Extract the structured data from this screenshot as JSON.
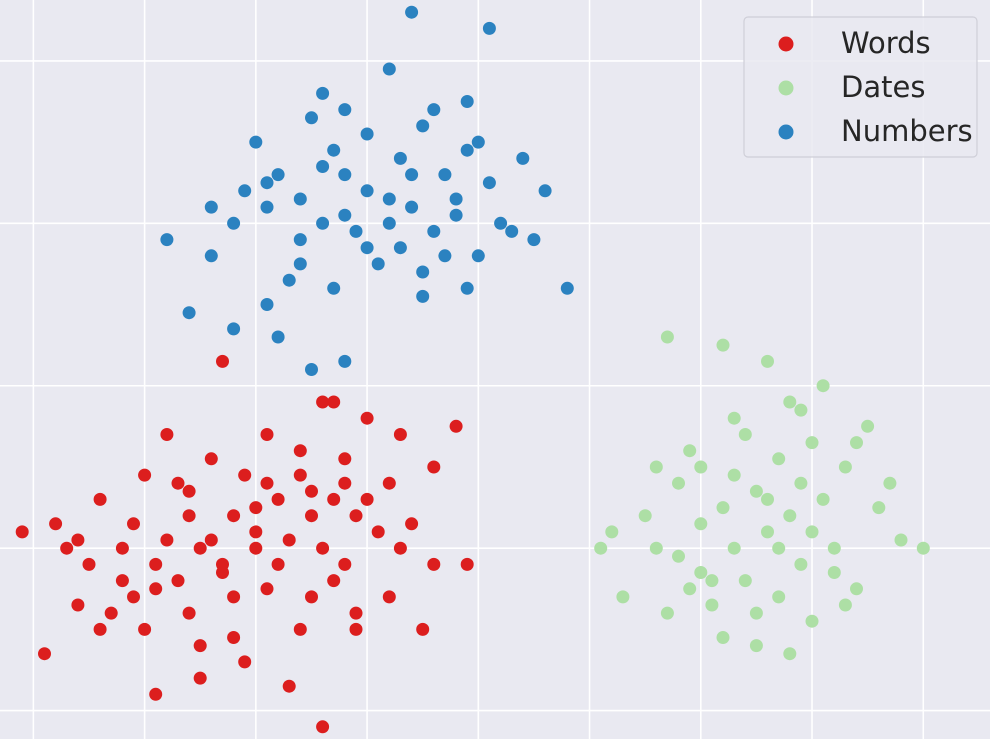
{
  "chart_data": {
    "type": "scatter",
    "title": "",
    "xlabel": "",
    "ylabel": "",
    "xlim": [
      -3.3,
      5.6
    ],
    "ylim": [
      -4.35,
      4.75
    ],
    "grid": true,
    "legend_position": "top-right",
    "background_color": "#e9e9f1",
    "grid_color": "#ffffff",
    "series": [
      {
        "name": "Words",
        "color": "#dc1e1e",
        "points": [
          [
            -2.1,
            -1.7
          ],
          [
            -1.6,
            -1.6
          ],
          [
            -1.0,
            -1.5
          ],
          [
            -0.5,
            -1.3
          ],
          [
            -2.6,
            -1.9
          ],
          [
            -1.3,
            -2.2
          ],
          [
            -0.9,
            -2.5
          ],
          [
            -0.3,
            -2.4
          ],
          [
            -2.9,
            -3.3
          ],
          [
            -1.5,
            -3.2
          ],
          [
            -0.6,
            -3.0
          ],
          [
            -2.3,
            -2.8
          ],
          [
            -1.9,
            -2.5
          ],
          [
            -0.2,
            -1.2
          ],
          [
            0.1,
            -1.8
          ],
          [
            0.4,
            -1.7
          ],
          [
            0.6,
            -2.2
          ],
          [
            0.2,
            -2.6
          ],
          [
            -0.1,
            -3.0
          ],
          [
            -0.7,
            -3.7
          ],
          [
            -1.2,
            -3.1
          ],
          [
            -2.5,
            -2.2
          ],
          [
            -3.1,
            -1.8
          ],
          [
            -2.8,
            -1.7
          ],
          [
            -1.8,
            -0.6
          ],
          [
            -1.4,
            -0.9
          ],
          [
            -0.9,
            -0.6
          ],
          [
            -0.3,
            -0.2
          ],
          [
            0.0,
            -0.4
          ],
          [
            0.3,
            -0.6
          ],
          [
            -0.6,
            -0.8
          ],
          [
            -1.1,
            -1.1
          ],
          [
            -1.7,
            -1.2
          ],
          [
            -2.4,
            -1.4
          ],
          [
            -2.2,
            -2.0
          ],
          [
            -1.8,
            -1.9
          ],
          [
            -1.4,
            -1.9
          ],
          [
            -1.0,
            -1.8
          ],
          [
            -0.7,
            -1.9
          ],
          [
            -0.4,
            -2.0
          ],
          [
            -0.1,
            -1.6
          ],
          [
            0.2,
            -1.2
          ],
          [
            -0.2,
            -0.9
          ],
          [
            -0.5,
            -1.6
          ],
          [
            -0.8,
            -1.4
          ],
          [
            -1.2,
            -1.6
          ],
          [
            -1.5,
            -2.0
          ],
          [
            -1.9,
            -2.2
          ],
          [
            -2.2,
            -2.4
          ],
          [
            -2.6,
            -2.7
          ],
          [
            -2.0,
            -3.0
          ],
          [
            -1.6,
            -2.8
          ],
          [
            -1.2,
            -2.6
          ],
          [
            -0.8,
            -2.2
          ],
          [
            -0.5,
            -2.6
          ],
          [
            -0.2,
            -2.2
          ],
          [
            -1.1,
            -3.4
          ],
          [
            -1.5,
            -3.6
          ],
          [
            -1.9,
            -3.8
          ],
          [
            -0.4,
            -4.2
          ],
          [
            -2.4,
            -3.0
          ],
          [
            -0.1,
            -2.8
          ],
          [
            0.5,
            -3.0
          ],
          [
            0.6,
            -1.0
          ],
          [
            0.8,
            -0.5
          ],
          [
            -1.3,
            0.3
          ],
          [
            -0.4,
            -0.2
          ],
          [
            -2.0,
            -1.1
          ],
          [
            -2.7,
            -2.0
          ],
          [
            -1.6,
            -1.3
          ],
          [
            -0.9,
            -1.2
          ],
          [
            -0.6,
            -1.1
          ],
          [
            -0.3,
            -1.4
          ],
          [
            0.0,
            -1.4
          ],
          [
            0.3,
            -2.0
          ],
          [
            -1.0,
            -2.0
          ],
          [
            -1.3,
            -2.3
          ],
          [
            -1.7,
            -2.4
          ],
          [
            -2.1,
            -2.6
          ],
          [
            0.9,
            -2.2
          ]
        ]
      },
      {
        "name": "Dates",
        "color": "#addfa5",
        "points": [
          [
            2.8,
            -1.2
          ],
          [
            3.2,
            -1.5
          ],
          [
            3.5,
            -1.3
          ],
          [
            3.8,
            -1.6
          ],
          [
            4.1,
            -1.4
          ],
          [
            2.6,
            -2.0
          ],
          [
            3.0,
            -2.3
          ],
          [
            3.3,
            -2.0
          ],
          [
            3.6,
            -1.8
          ],
          [
            3.9,
            -2.2
          ],
          [
            4.2,
            -2.0
          ],
          [
            2.9,
            -0.8
          ],
          [
            3.4,
            -0.6
          ],
          [
            3.7,
            -0.9
          ],
          [
            4.0,
            -0.7
          ],
          [
            4.3,
            -1.0
          ],
          [
            2.5,
            -1.6
          ],
          [
            2.3,
            -2.6
          ],
          [
            2.7,
            -2.8
          ],
          [
            3.1,
            -2.4
          ],
          [
            3.7,
            -2.6
          ],
          [
            4.0,
            -2.9
          ],
          [
            4.4,
            -2.5
          ],
          [
            3.5,
            -3.2
          ],
          [
            3.8,
            -3.3
          ],
          [
            4.1,
            0.0
          ],
          [
            3.6,
            0.3
          ],
          [
            3.2,
            0.5
          ],
          [
            2.7,
            0.6
          ],
          [
            3.9,
            -0.3
          ],
          [
            4.5,
            -0.5
          ],
          [
            4.6,
            -1.5
          ],
          [
            4.8,
            -1.9
          ],
          [
            5.0,
            -2.0
          ],
          [
            2.1,
            -2.0
          ],
          [
            2.2,
            -1.8
          ],
          [
            3.0,
            -1.7
          ],
          [
            3.3,
            -1.1
          ],
          [
            3.6,
            -1.4
          ],
          [
            3.4,
            -2.4
          ],
          [
            3.7,
            -2.0
          ],
          [
            4.0,
            -1.8
          ],
          [
            4.2,
            -2.3
          ],
          [
            2.8,
            -2.1
          ],
          [
            3.1,
            -2.7
          ],
          [
            3.5,
            -2.8
          ],
          [
            3.9,
            -1.2
          ],
          [
            3.3,
            -0.4
          ],
          [
            3.8,
            -0.2
          ],
          [
            4.4,
            -0.7
          ],
          [
            2.6,
            -1.0
          ],
          [
            3.0,
            -1.0
          ],
          [
            2.9,
            -2.5
          ],
          [
            4.3,
            -2.7
          ],
          [
            4.7,
            -1.2
          ],
          [
            3.2,
            -3.1
          ]
        ]
      },
      {
        "name": "Numbers",
        "color": "#2b82c0",
        "points": [
          [
            -0.9,
            2.5
          ],
          [
            -0.4,
            2.7
          ],
          [
            0.0,
            2.4
          ],
          [
            0.4,
            2.6
          ],
          [
            0.8,
            2.3
          ],
          [
            -1.2,
            2.0
          ],
          [
            -0.6,
            1.8
          ],
          [
            -0.2,
            2.1
          ],
          [
            0.2,
            2.0
          ],
          [
            0.6,
            1.9
          ],
          [
            1.0,
            1.6
          ],
          [
            -1.0,
            3.0
          ],
          [
            -0.5,
            3.3
          ],
          [
            0.0,
            3.1
          ],
          [
            0.5,
            3.2
          ],
          [
            0.9,
            2.9
          ],
          [
            -0.7,
            1.3
          ],
          [
            -0.3,
            1.2
          ],
          [
            0.1,
            1.5
          ],
          [
            0.5,
            1.4
          ],
          [
            0.9,
            1.2
          ],
          [
            -1.4,
            1.6
          ],
          [
            -1.8,
            1.8
          ],
          [
            -0.4,
            3.6
          ],
          [
            0.2,
            3.9
          ],
          [
            0.4,
            4.6
          ],
          [
            1.1,
            4.4
          ],
          [
            1.4,
            2.8
          ],
          [
            1.6,
            2.4
          ],
          [
            1.8,
            1.2
          ],
          [
            -0.8,
            0.6
          ],
          [
            -0.5,
            0.2
          ],
          [
            -0.2,
            0.3
          ],
          [
            -1.6,
            0.9
          ],
          [
            -1.2,
            0.7
          ],
          [
            -0.6,
            2.3
          ],
          [
            -0.2,
            2.6
          ],
          [
            0.3,
            2.8
          ],
          [
            0.7,
            2.6
          ],
          [
            -0.9,
            2.2
          ],
          [
            -0.4,
            2.0
          ],
          [
            0.0,
            1.7
          ],
          [
            0.4,
            2.2
          ],
          [
            0.8,
            2.1
          ],
          [
            1.2,
            2.0
          ],
          [
            -0.6,
            1.5
          ],
          [
            -0.1,
            1.9
          ],
          [
            0.3,
            1.7
          ],
          [
            0.7,
            1.6
          ],
          [
            1.1,
            2.5
          ],
          [
            1.3,
            1.9
          ],
          [
            -0.3,
            2.9
          ],
          [
            0.2,
            2.3
          ],
          [
            -0.8,
            2.6
          ],
          [
            -1.1,
            2.4
          ],
          [
            0.6,
            3.4
          ],
          [
            1.0,
            3.0
          ],
          [
            -0.2,
            3.4
          ],
          [
            0.5,
            1.1
          ],
          [
            -0.9,
            1.0
          ],
          [
            1.5,
            1.8
          ],
          [
            -1.4,
            2.2
          ],
          [
            0.9,
            3.5
          ]
        ]
      }
    ]
  }
}
